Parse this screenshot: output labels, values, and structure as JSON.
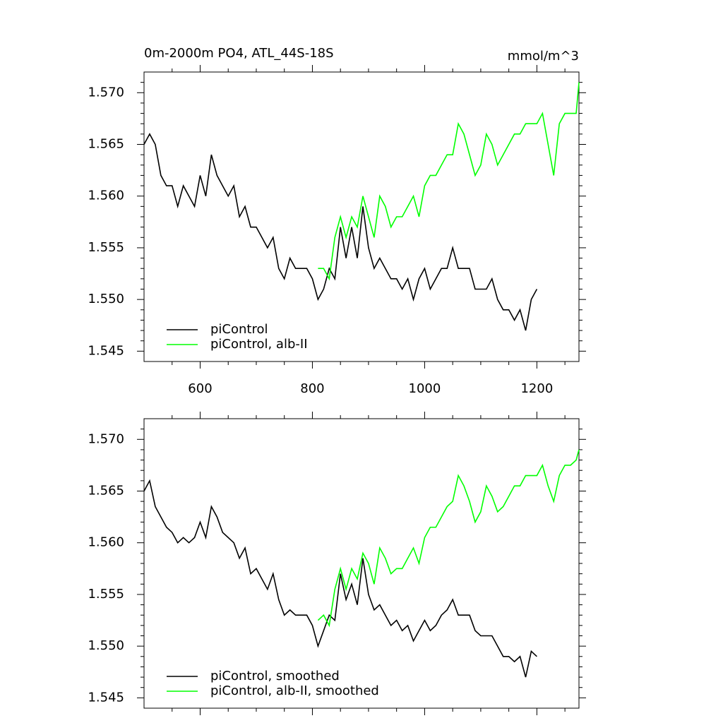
{
  "chart_data": [
    {
      "type": "line",
      "title": "0m-2000m PO4, ATL_44S-18S",
      "unit_label": "mmol/m^3",
      "xlim": [
        500,
        1275
      ],
      "xticks": [
        600,
        800,
        1000,
        1200
      ],
      "show_xtick_labels": true,
      "ylim": [
        1.544,
        1.572
      ],
      "yticks": [
        1.545,
        {
          "value": 1.55,
          "label": "1.550"
        },
        1.555,
        {
          "value": 1.56,
          "label": "1.560"
        },
        1.565,
        {
          "value": 1.57,
          "label": "1.570"
        }
      ],
      "series": [
        {
          "name": "piControl",
          "color": "#000000",
          "x": [
            500,
            510,
            520,
            530,
            540,
            550,
            560,
            570,
            580,
            590,
            600,
            610,
            620,
            630,
            640,
            650,
            660,
            670,
            680,
            690,
            700,
            710,
            720,
            730,
            740,
            750,
            760,
            770,
            780,
            790,
            800,
            810,
            820,
            830,
            840,
            850,
            860,
            870,
            880,
            890,
            900,
            910,
            920,
            930,
            940,
            950,
            960,
            970,
            980,
            990,
            1000,
            1010,
            1020,
            1030,
            1040,
            1050,
            1060,
            1070,
            1080,
            1090,
            1100,
            1110,
            1120,
            1130,
            1140,
            1150,
            1160,
            1170,
            1180,
            1190,
            1200
          ],
          "values": [
            1.565,
            1.566,
            1.565,
            1.562,
            1.561,
            1.561,
            1.559,
            1.561,
            1.56,
            1.559,
            1.562,
            1.56,
            1.564,
            1.562,
            1.561,
            1.56,
            1.561,
            1.558,
            1.559,
            1.557,
            1.557,
            1.556,
            1.555,
            1.556,
            1.553,
            1.552,
            1.554,
            1.553,
            1.553,
            1.553,
            1.552,
            1.55,
            1.551,
            1.553,
            1.552,
            1.557,
            1.554,
            1.557,
            1.554,
            1.559,
            1.555,
            1.553,
            1.554,
            1.553,
            1.552,
            1.552,
            1.551,
            1.552,
            1.55,
            1.552,
            1.553,
            1.551,
            1.552,
            1.553,
            1.553,
            1.555,
            1.553,
            1.553,
            1.553,
            1.551,
            1.551,
            1.551,
            1.552,
            1.55,
            1.549,
            1.549,
            1.548,
            1.549,
            1.547,
            1.55,
            1.551
          ]
        },
        {
          "name": "piControl, alb-II",
          "color": "#00ff00",
          "x": [
            810,
            820,
            830,
            840,
            850,
            860,
            870,
            880,
            890,
            900,
            910,
            920,
            930,
            940,
            950,
            960,
            970,
            980,
            990,
            1000,
            1010,
            1020,
            1030,
            1040,
            1050,
            1060,
            1070,
            1080,
            1090,
            1100,
            1110,
            1120,
            1130,
            1140,
            1150,
            1160,
            1170,
            1180,
            1190,
            1200,
            1210,
            1220,
            1230,
            1240,
            1250,
            1260,
            1270,
            1275
          ],
          "values": [
            1.553,
            1.553,
            1.552,
            1.556,
            1.558,
            1.556,
            1.558,
            1.557,
            1.56,
            1.558,
            1.556,
            1.56,
            1.559,
            1.557,
            1.558,
            1.558,
            1.559,
            1.56,
            1.558,
            1.561,
            1.562,
            1.562,
            1.563,
            1.564,
            1.564,
            1.567,
            1.566,
            1.564,
            1.562,
            1.563,
            1.566,
            1.565,
            1.563,
            1.564,
            1.565,
            1.566,
            1.566,
            1.567,
            1.567,
            1.567,
            1.568,
            1.565,
            1.562,
            1.567,
            1.568,
            1.568,
            1.568,
            1.571
          ]
        }
      ]
    },
    {
      "type": "line",
      "xlim": [
        500,
        1275
      ],
      "xticks": [
        600,
        800,
        1000,
        1200
      ],
      "show_xtick_labels": false,
      "ylim": [
        1.544,
        1.572
      ],
      "yticks": [
        1.545,
        {
          "value": 1.55,
          "label": "1.550"
        },
        1.555,
        {
          "value": 1.56,
          "label": "1.560"
        },
        1.565,
        {
          "value": 1.57,
          "label": "1.570"
        }
      ],
      "series": [
        {
          "name": "piControl, smoothed",
          "color": "#000000",
          "x": [
            500,
            510,
            520,
            530,
            540,
            550,
            560,
            570,
            580,
            590,
            600,
            610,
            620,
            630,
            640,
            650,
            660,
            670,
            680,
            690,
            700,
            710,
            720,
            730,
            740,
            750,
            760,
            770,
            780,
            790,
            800,
            810,
            820,
            830,
            840,
            850,
            860,
            870,
            880,
            890,
            900,
            910,
            920,
            930,
            940,
            950,
            960,
            970,
            980,
            990,
            1000,
            1010,
            1020,
            1030,
            1040,
            1050,
            1060,
            1070,
            1080,
            1090,
            1100,
            1110,
            1120,
            1130,
            1140,
            1150,
            1160,
            1170,
            1180,
            1190,
            1200
          ],
          "values": [
            1.565,
            1.566,
            1.5635,
            1.5625,
            1.5615,
            1.561,
            1.56,
            1.5605,
            1.56,
            1.5605,
            1.562,
            1.5605,
            1.5635,
            1.5625,
            1.561,
            1.5605,
            1.56,
            1.5585,
            1.5595,
            1.557,
            1.5575,
            1.5565,
            1.5555,
            1.557,
            1.5545,
            1.553,
            1.5535,
            1.553,
            1.553,
            1.553,
            1.552,
            1.55,
            1.5515,
            1.553,
            1.5525,
            1.557,
            1.5545,
            1.556,
            1.554,
            1.5585,
            1.555,
            1.5535,
            1.554,
            1.553,
            1.552,
            1.5525,
            1.5515,
            1.552,
            1.5505,
            1.5515,
            1.5525,
            1.5515,
            1.552,
            1.553,
            1.5535,
            1.5545,
            1.553,
            1.553,
            1.553,
            1.5515,
            1.551,
            1.551,
            1.551,
            1.55,
            1.549,
            1.549,
            1.5485,
            1.549,
            1.547,
            1.5495,
            1.549
          ]
        },
        {
          "name": "piControl, alb-II, smoothed",
          "color": "#00ff00",
          "x": [
            810,
            820,
            830,
            840,
            850,
            860,
            870,
            880,
            890,
            900,
            910,
            920,
            930,
            940,
            950,
            960,
            970,
            980,
            990,
            1000,
            1010,
            1020,
            1030,
            1040,
            1050,
            1060,
            1070,
            1080,
            1090,
            1100,
            1110,
            1120,
            1130,
            1140,
            1150,
            1160,
            1170,
            1180,
            1190,
            1200,
            1210,
            1220,
            1230,
            1240,
            1250,
            1260,
            1270,
            1275
          ],
          "values": [
            1.5525,
            1.553,
            1.552,
            1.5555,
            1.5575,
            1.5555,
            1.5575,
            1.5565,
            1.559,
            1.558,
            1.556,
            1.5595,
            1.5585,
            1.557,
            1.5575,
            1.5575,
            1.5585,
            1.5595,
            1.558,
            1.5605,
            1.5615,
            1.5615,
            1.5625,
            1.5635,
            1.564,
            1.5665,
            1.5655,
            1.564,
            1.562,
            1.563,
            1.5655,
            1.5645,
            1.563,
            1.5635,
            1.5645,
            1.5655,
            1.5655,
            1.5665,
            1.5665,
            1.5665,
            1.5675,
            1.5655,
            1.564,
            1.5665,
            1.5675,
            1.5675,
            1.568,
            1.569
          ]
        }
      ]
    }
  ]
}
